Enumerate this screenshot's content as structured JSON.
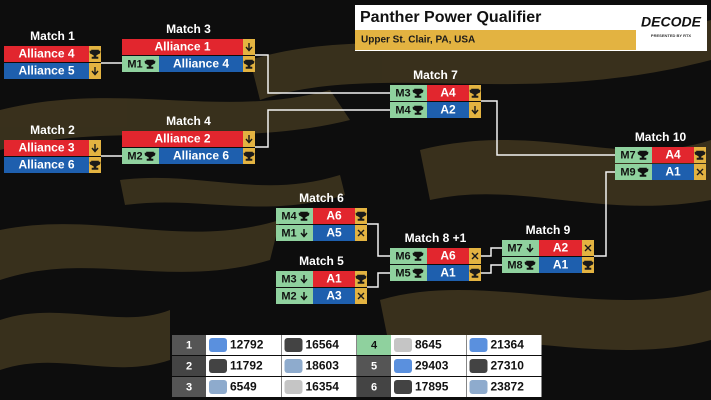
{
  "header": {
    "title": "Panther Power Qualifier",
    "location": "Upper St. Clair, PA, USA",
    "logo": "DECODE",
    "logo_sub": "PRESENTED BY RTX"
  },
  "matches": [
    {
      "label": "Match 1",
      "rows": [
        {
          "alliance": "Alliance 4"
        },
        {
          "alliance": "Alliance 5"
        }
      ]
    },
    {
      "label": "Match 3",
      "rows": [
        {
          "alliance": "Alliance 1"
        },
        {
          "source": "M1",
          "alliance": "Alliance 4"
        }
      ]
    },
    {
      "label": "Match 2",
      "rows": [
        {
          "alliance": "Alliance 3"
        },
        {
          "alliance": "Alliance 6"
        }
      ]
    },
    {
      "label": "Match 4",
      "rows": [
        {
          "alliance": "Alliance 2"
        },
        {
          "source": "M2",
          "alliance": "Alliance 6"
        }
      ]
    },
    {
      "label": "Match 7",
      "rows": [
        {
          "source": "M3",
          "alliance": "A4"
        },
        {
          "source": "M4",
          "alliance": "A2"
        }
      ]
    },
    {
      "label": "Match 6",
      "rows": [
        {
          "source": "M4",
          "alliance": "A6"
        },
        {
          "source": "M1",
          "alliance": "A5"
        }
      ]
    },
    {
      "label": "Match 5",
      "rows": [
        {
          "source": "M3",
          "alliance": "A1"
        },
        {
          "source": "M2",
          "alliance": "A3"
        }
      ]
    },
    {
      "label": "Match 8 +1",
      "rows": [
        {
          "source": "M6",
          "alliance": "A6"
        },
        {
          "source": "M5",
          "alliance": "A1"
        }
      ]
    },
    {
      "label": "Match 9",
      "rows": [
        {
          "source": "M7",
          "alliance": "A2"
        },
        {
          "source": "M8",
          "alliance": "A1"
        }
      ]
    },
    {
      "label": "Match 10",
      "rows": [
        {
          "source": "M7",
          "alliance": "A4"
        },
        {
          "source": "M9",
          "alliance": "A1"
        }
      ]
    }
  ],
  "rankings": [
    {
      "rank": "1",
      "teams": [
        "12792",
        "16564"
      ]
    },
    {
      "rank": "2",
      "teams": [
        "11792",
        "18603"
      ]
    },
    {
      "rank": "3",
      "teams": [
        "6549",
        "16354"
      ]
    },
    {
      "rank": "4",
      "teams": [
        "8645",
        "21364"
      ]
    },
    {
      "rank": "5",
      "teams": [
        "29403",
        "27310"
      ]
    },
    {
      "rank": "6",
      "teams": [
        "17895",
        "23872"
      ]
    }
  ]
}
